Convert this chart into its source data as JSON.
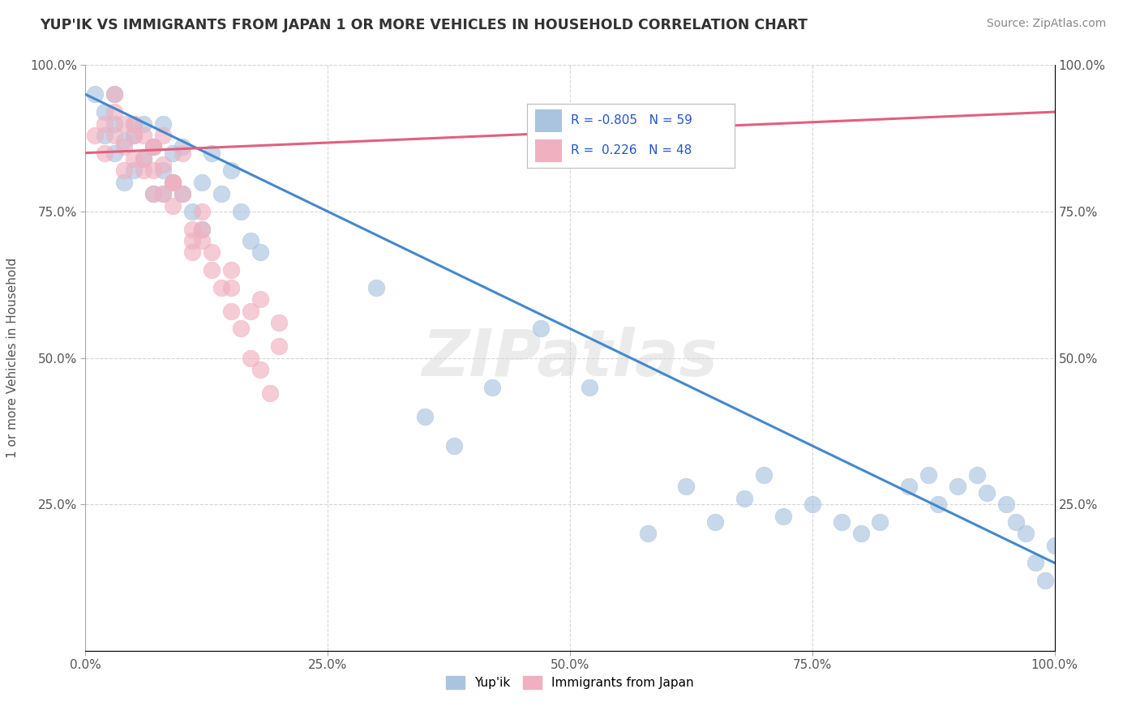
{
  "title": "YUP'IK VS IMMIGRANTS FROM JAPAN 1 OR MORE VEHICLES IN HOUSEHOLD CORRELATION CHART",
  "source": "Source: ZipAtlas.com",
  "ylabel": "1 or more Vehicles in Household",
  "xlim": [
    0,
    100
  ],
  "ylim": [
    0,
    100
  ],
  "xtick_labels": [
    "0.0%",
    "25.0%",
    "50.0%",
    "75.0%",
    "100.0%"
  ],
  "xtick_positions": [
    0,
    25,
    50,
    75,
    100
  ],
  "ytick_labels": [
    "25.0%",
    "50.0%",
    "75.0%",
    "100.0%"
  ],
  "ytick_positions": [
    25,
    50,
    75,
    100
  ],
  "blue_R": "-0.805",
  "blue_N": "59",
  "pink_R": "0.226",
  "pink_N": "48",
  "blue_color": "#aac4e0",
  "pink_color": "#f0b0c0",
  "blue_line_color": "#4488cc",
  "pink_line_color": "#e06080",
  "watermark": "ZIPatlas",
  "blue_line_x0": 0,
  "blue_line_y0": 95,
  "blue_line_x1": 100,
  "blue_line_y1": 15,
  "pink_line_x0": 0,
  "pink_line_y0": 85,
  "pink_line_x1": 100,
  "pink_line_y1": 92,
  "blue_scatter_x": [
    1,
    2,
    2,
    3,
    3,
    4,
    4,
    5,
    5,
    6,
    6,
    7,
    7,
    8,
    8,
    9,
    9,
    10,
    10,
    11,
    12,
    13,
    14,
    15,
    16,
    17,
    18,
    3,
    5,
    8,
    12,
    30,
    35,
    38,
    42,
    47,
    52,
    58,
    62,
    65,
    68,
    70,
    72,
    75,
    78,
    80,
    82,
    85,
    87,
    88,
    90,
    92,
    93,
    95,
    96,
    97,
    98,
    99,
    100
  ],
  "blue_scatter_y": [
    95,
    92,
    88,
    90,
    85,
    87,
    80,
    88,
    82,
    90,
    84,
    86,
    78,
    82,
    90,
    85,
    80,
    86,
    78,
    75,
    80,
    85,
    78,
    82,
    75,
    70,
    68,
    95,
    90,
    78,
    72,
    62,
    40,
    35,
    45,
    55,
    45,
    20,
    28,
    22,
    26,
    30,
    23,
    25,
    22,
    20,
    22,
    28,
    30,
    25,
    28,
    30,
    27,
    25,
    22,
    20,
    15,
    12,
    18
  ],
  "pink_scatter_x": [
    1,
    2,
    2,
    3,
    3,
    4,
    4,
    5,
    5,
    6,
    6,
    7,
    7,
    8,
    8,
    9,
    9,
    10,
    10,
    11,
    11,
    12,
    12,
    13,
    14,
    15,
    16,
    17,
    18,
    19,
    20,
    3,
    5,
    7,
    9,
    12,
    15,
    18,
    4,
    6,
    8,
    11,
    15,
    20,
    7,
    9,
    13,
    17
  ],
  "pink_scatter_y": [
    88,
    90,
    85,
    92,
    88,
    86,
    82,
    90,
    84,
    88,
    82,
    86,
    78,
    83,
    88,
    80,
    76,
    85,
    78,
    72,
    68,
    75,
    70,
    65,
    62,
    58,
    55,
    50,
    48,
    44,
    52,
    95,
    88,
    82,
    80,
    72,
    65,
    60,
    90,
    84,
    78,
    70,
    62,
    56,
    86,
    80,
    68,
    58
  ]
}
